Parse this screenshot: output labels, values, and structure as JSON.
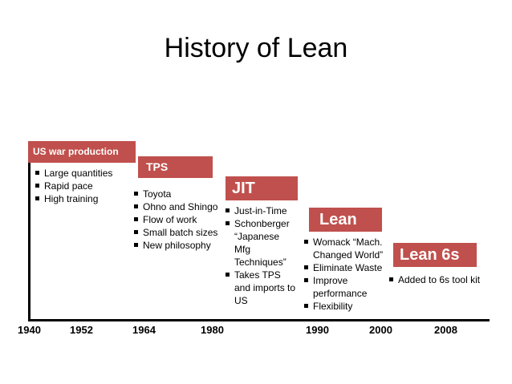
{
  "title": "History of Lean",
  "years": [
    "1940",
    "1952",
    "1964",
    "1980",
    "1990",
    "2000",
    "2008"
  ],
  "stages": [
    {
      "label": "US war production",
      "bullets": [
        "Large quantities",
        "Rapid pace",
        "High training"
      ]
    },
    {
      "label": "TPS",
      "bullets": [
        "Toyota",
        "Ohno and Shingo",
        "Flow of work",
        "Small batch sizes",
        "New philosophy"
      ]
    },
    {
      "label": "JIT",
      "bullets": [
        "Just-in-Time",
        "Schonberger “Japanese Mfg Techniques”",
        "Takes TPS and imports to US"
      ]
    },
    {
      "label": "Lean",
      "bullets": [
        "Womack “Mach. Changed World”",
        "Eliminate Waste",
        "Improve performance",
        "Flexibility"
      ]
    },
    {
      "label": "Lean 6s",
      "bullets": [
        "Added to 6s tool kit"
      ]
    }
  ],
  "colors": {
    "stage_fill": "#c0504d",
    "stage_text": "#ffffff"
  }
}
